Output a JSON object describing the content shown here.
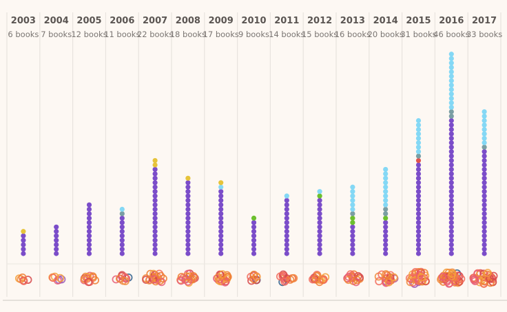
{
  "chart_data": {
    "type": "dot-stack",
    "title": "",
    "xlabel": "",
    "ylabel": "",
    "count_suffix": "books",
    "categories": [
      "2003",
      "2004",
      "2005",
      "2006",
      "2007",
      "2008",
      "2009",
      "2010",
      "2011",
      "2012",
      "2013",
      "2014",
      "2015",
      "2016",
      "2017"
    ],
    "totals": [
      6,
      7,
      12,
      11,
      22,
      18,
      17,
      9,
      14,
      15,
      16,
      20,
      31,
      46,
      33
    ],
    "segment_colors": {
      "purple": "#7b4dc9",
      "red": "#e0534d",
      "green": "#6cbf2e",
      "gray": "#7a9ea3",
      "yellow": "#e6c33a",
      "lightblue": "#84d8f5"
    },
    "stacks_bottom_to_top": [
      [
        {
          "c": "purple",
          "n": 5
        },
        {
          "c": "yellow",
          "n": 1
        }
      ],
      [
        {
          "c": "purple",
          "n": 7
        }
      ],
      [
        {
          "c": "purple",
          "n": 12
        }
      ],
      [
        {
          "c": "purple",
          "n": 9
        },
        {
          "c": "gray",
          "n": 1
        },
        {
          "c": "lightblue",
          "n": 1
        }
      ],
      [
        {
          "c": "purple",
          "n": 20
        },
        {
          "c": "yellow",
          "n": 2
        }
      ],
      [
        {
          "c": "purple",
          "n": 17
        },
        {
          "c": "yellow",
          "n": 1
        }
      ],
      [
        {
          "c": "purple",
          "n": 15
        },
        {
          "c": "lightblue",
          "n": 1
        },
        {
          "c": "yellow",
          "n": 1
        }
      ],
      [
        {
          "c": "purple",
          "n": 8
        },
        {
          "c": "green",
          "n": 1
        }
      ],
      [
        {
          "c": "purple",
          "n": 13
        },
        {
          "c": "lightblue",
          "n": 1
        }
      ],
      [
        {
          "c": "purple",
          "n": 13
        },
        {
          "c": "green",
          "n": 1
        },
        {
          "c": "lightblue",
          "n": 1
        }
      ],
      [
        {
          "c": "purple",
          "n": 7
        },
        {
          "c": "green",
          "n": 2
        },
        {
          "c": "gray",
          "n": 1
        },
        {
          "c": "lightblue",
          "n": 6
        }
      ],
      [
        {
          "c": "purple",
          "n": 8
        },
        {
          "c": "green",
          "n": 1
        },
        {
          "c": "gray",
          "n": 2
        },
        {
          "c": "lightblue",
          "n": 9
        }
      ],
      [
        {
          "c": "purple",
          "n": 21
        },
        {
          "c": "red",
          "n": 1
        },
        {
          "c": "gray",
          "n": 1
        },
        {
          "c": "lightblue",
          "n": 8
        }
      ],
      [
        {
          "c": "purple",
          "n": 31
        },
        {
          "c": "gray",
          "n": 2
        },
        {
          "c": "lightblue",
          "n": 13
        }
      ],
      [
        {
          "c": "purple",
          "n": 24
        },
        {
          "c": "gray",
          "n": 1
        },
        {
          "c": "lightblue",
          "n": 8
        }
      ]
    ],
    "ring_palette": [
      "#f26b5b",
      "#f5a03a",
      "#ee7d2f",
      "#e85d75",
      "#f08a3c",
      "#d6484a",
      "#b8578f",
      "#c0392b",
      "#2c5d8a",
      "#9b59b6"
    ]
  }
}
